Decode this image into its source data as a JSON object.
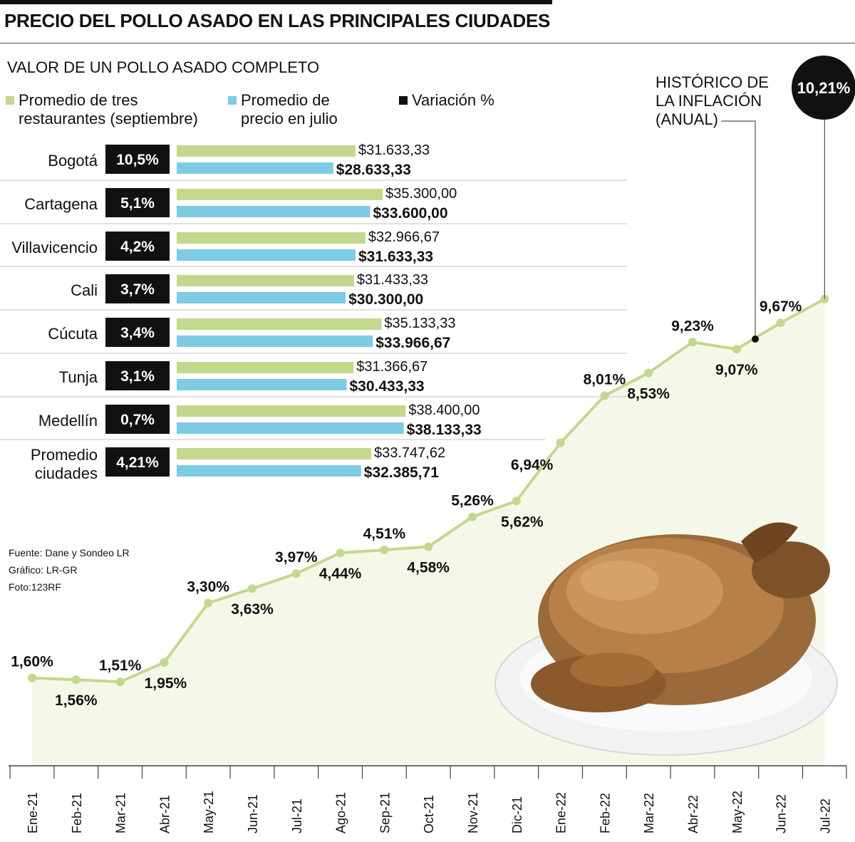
{
  "header": {
    "title": "PRECIO DEL POLLO ASADO EN LAS PRINCIPALES CIUDADES",
    "subtitle": "VALOR DE UN POLLO ASADO COMPLETO"
  },
  "legend": [
    {
      "label": "Promedio de tres\nrestaurantes (septiembre)",
      "color": "#c3d88c"
    },
    {
      "label": "Promedio de\nprecio en julio",
      "color": "#7ecbe5"
    },
    {
      "label": "Variación %",
      "color": "#111111"
    }
  ],
  "credits": [
    "Fuente: Dane y Sondeo LR",
    "Gráfico: LR-GR",
    "Foto:123RF"
  ],
  "annotation": {
    "text": "HISTÓRICO DE\nLA INFLACIÓN\n(ANUAL)",
    "value": "10,21%"
  },
  "chart_data": [
    {
      "type": "bar",
      "title": "VALOR DE UN POLLO ASADO COMPLETO",
      "orientation": "horizontal",
      "categories": [
        "Bogotá",
        "Cartagena",
        "Villavicencio",
        "Cali",
        "Cúcuta",
        "Tunja",
        "Medellín",
        "Promedio ciudades"
      ],
      "variation_labels": [
        "10,5%",
        "5,1%",
        "4,2%",
        "3,7%",
        "3,4%",
        "3,1%",
        "0,7%",
        "4,21%"
      ],
      "series": [
        {
          "name": "Promedio de tres restaurantes (septiembre)",
          "color": "#c3d88c",
          "values": [
            31633.33,
            35300.0,
            32966.67,
            31433.33,
            35133.33,
            31366.67,
            38400.0,
            33747.62
          ],
          "labels": [
            "$31.633,33",
            "$35.300,00",
            "$32.966,67",
            "$31.433,33",
            "$35.133,33",
            "$31.366,67",
            "$38.400,00",
            "$33.747,62"
          ]
        },
        {
          "name": "Promedio de precio en julio",
          "color": "#7ecbe5",
          "values": [
            28633.33,
            33600.0,
            31633.33,
            30300.0,
            33966.67,
            30433.33,
            38133.33,
            32385.71
          ],
          "labels": [
            "$28.633,33",
            "$33.600,00",
            "$31.633,33",
            "$30.300,00",
            "$33.966,67",
            "$30.433,33",
            "$38.133,33",
            "$32.385,71"
          ]
        }
      ],
      "grid": false
    },
    {
      "type": "area",
      "title": "HISTÓRICO DE LA INFLACIÓN (ANUAL)",
      "categories": [
        "Ene-21",
        "Feb-21",
        "Mar-21",
        "Abr-21",
        "May-21",
        "Jun-21",
        "Jul-21",
        "Ago-21",
        "Sep-21",
        "Oct-21",
        "Nov-21",
        "Dic-21",
        "Ene-22",
        "Feb-22",
        "Mar-22",
        "Abr-22",
        "May-22",
        "Jun-22",
        "Jul-22"
      ],
      "series": [
        {
          "color": "#c3d88c",
          "values": [
            1.6,
            1.56,
            1.51,
            1.95,
            3.3,
            3.63,
            3.97,
            4.44,
            4.51,
            4.58,
            5.26,
            5.62,
            6.94,
            8.01,
            8.53,
            9.23,
            9.07,
            9.67,
            10.21
          ],
          "labels": [
            "1,60%",
            "1,56%",
            "1,51%",
            "1,95%",
            "3,30%",
            "3,63%",
            "3,97%",
            "4,44%",
            "4,51%",
            "4,58%",
            "5,26%",
            "5,62%",
            "6,94%",
            "8,01%",
            "8,53%",
            "9,23%",
            "9,07%",
            "9,67%",
            "10,21%"
          ]
        }
      ],
      "grid": false
    }
  ]
}
